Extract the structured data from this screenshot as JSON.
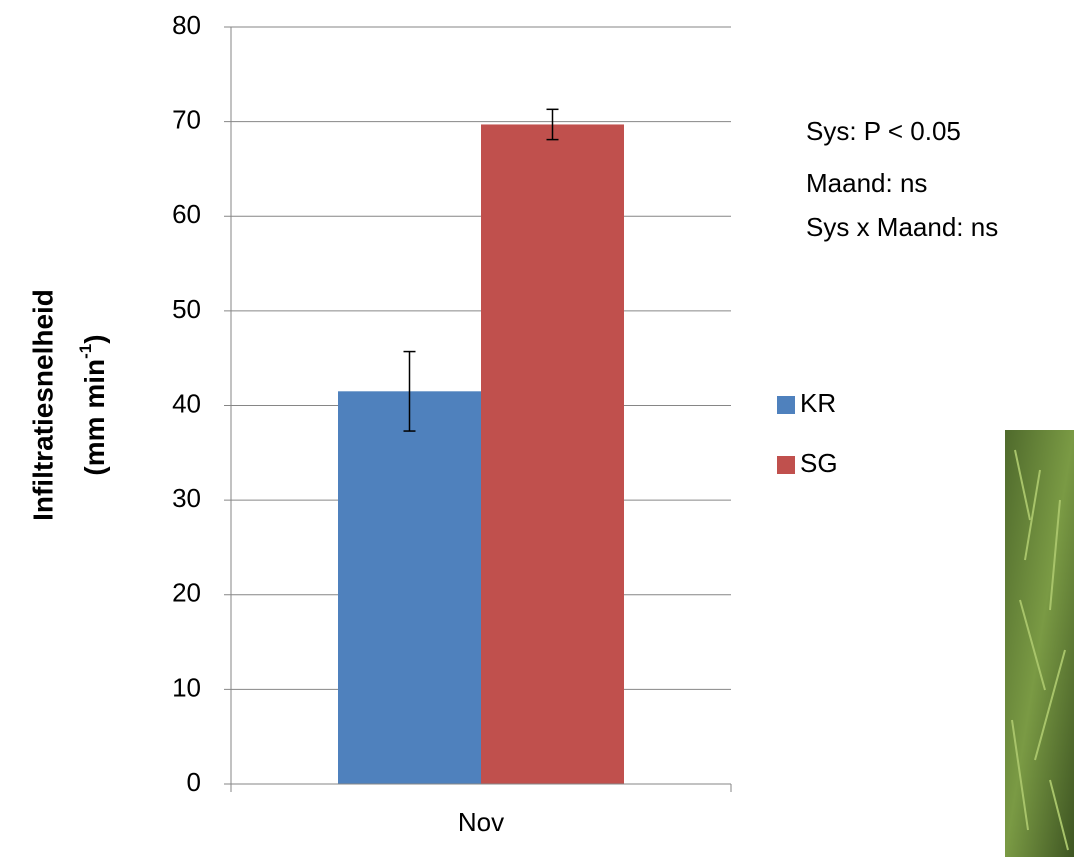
{
  "chart_data": {
    "type": "bar",
    "categories": [
      "Nov"
    ],
    "series": [
      {
        "name": "KR",
        "color": "#4f81bd",
        "values": [
          41.5
        ],
        "errors": [
          4.2
        ]
      },
      {
        "name": "SG",
        "color": "#c0504d",
        "values": [
          69.7
        ],
        "errors": [
          1.6
        ]
      }
    ],
    "ylim": [
      0,
      80
    ],
    "yticks": [
      0,
      10,
      20,
      30,
      40,
      50,
      60,
      70,
      80
    ],
    "grid": true,
    "y_label": {
      "line1": "Infiltratiesnelheid",
      "line2": "(mm min",
      "superscript": "-1",
      "line2_end": ")"
    },
    "annotations": [
      "Sys: P  < 0.05",
      "Maand: ns",
      "Sys x Maand: ns"
    ],
    "legend": "right"
  }
}
